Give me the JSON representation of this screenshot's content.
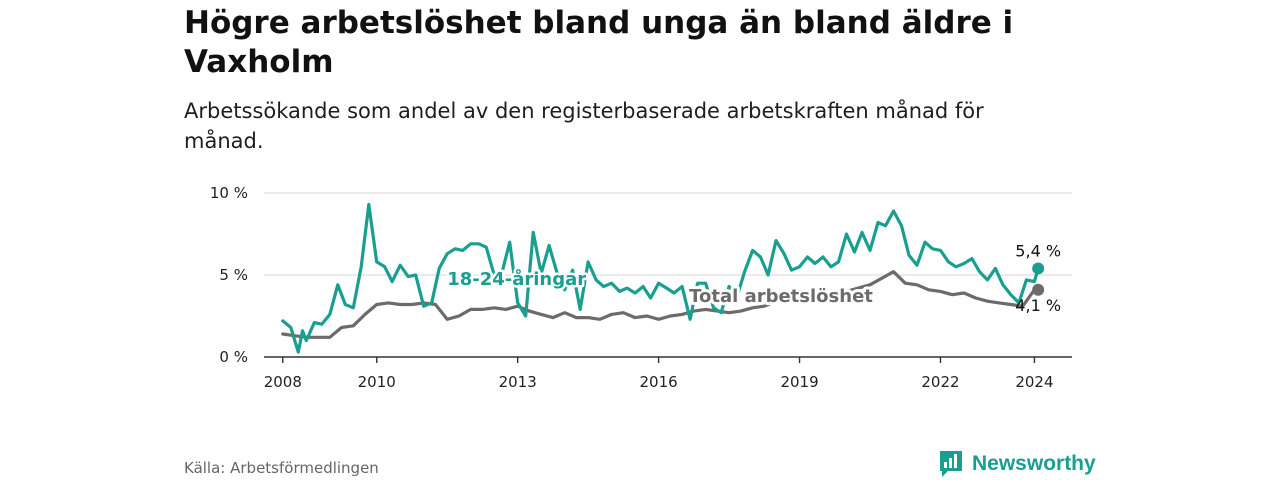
{
  "chart_data": {
    "type": "line",
    "title": "Högre arbetslöshet bland unga än bland äldre i Vaxholm",
    "subtitle": "Arbetssökande som andel av den registerbaserade arbetskraften månad för månad.",
    "xlabel": "",
    "ylabel": "",
    "x_ticks": [
      "2008",
      "2010",
      "2013",
      "2016",
      "2019",
      "2022",
      "2024"
    ],
    "x_tick_values": [
      2008,
      2010,
      2013,
      2016,
      2019,
      2022,
      2024
    ],
    "y_ticks": [
      "0 %",
      "5 %",
      "10 %"
    ],
    "y_tick_values": [
      0,
      5,
      10
    ],
    "xlim": [
      2007.6,
      2024.8
    ],
    "ylim": [
      0,
      10
    ],
    "grid": true,
    "series": [
      {
        "name": "18-24-åringar",
        "color": "#1a9e8f",
        "end_label": "5,4 %",
        "x": [
          2008.0,
          2008.17,
          2008.33,
          2008.42,
          2008.5,
          2008.67,
          2008.83,
          2009.0,
          2009.17,
          2009.33,
          2009.5,
          2009.67,
          2009.83,
          2010.0,
          2010.17,
          2010.33,
          2010.5,
          2010.67,
          2010.83,
          2011.0,
          2011.17,
          2011.33,
          2011.5,
          2011.67,
          2011.83,
          2012.0,
          2012.17,
          2012.33,
          2012.5,
          2012.67,
          2012.83,
          2013.0,
          2013.17,
          2013.33,
          2013.5,
          2013.67,
          2013.83,
          2014.0,
          2014.17,
          2014.33,
          2014.5,
          2014.67,
          2014.83,
          2015.0,
          2015.17,
          2015.33,
          2015.5,
          2015.67,
          2015.83,
          2016.0,
          2016.17,
          2016.33,
          2016.5,
          2016.67,
          2016.83,
          2017.0,
          2017.17,
          2017.33,
          2017.5,
          2017.67,
          2017.83,
          2018.0,
          2018.17,
          2018.33,
          2018.5,
          2018.67,
          2018.83,
          2019.0,
          2019.17,
          2019.33,
          2019.5,
          2019.67,
          2019.83,
          2020.0,
          2020.17,
          2020.33,
          2020.5,
          2020.67,
          2020.83,
          2021.0,
          2021.17,
          2021.33,
          2021.5,
          2021.67,
          2021.83,
          2022.0,
          2022.17,
          2022.33,
          2022.5,
          2022.67,
          2022.83,
          2023.0,
          2023.17,
          2023.33,
          2023.5,
          2023.67,
          2023.83,
          2024.0,
          2024.08
        ],
        "values": [
          2.2,
          1.8,
          0.3,
          1.6,
          1.0,
          2.1,
          2.0,
          2.6,
          4.4,
          3.2,
          3.0,
          5.5,
          9.3,
          5.8,
          5.5,
          4.6,
          5.6,
          4.9,
          5.0,
          3.1,
          3.3,
          5.4,
          6.3,
          6.6,
          6.5,
          6.9,
          6.9,
          6.7,
          5.0,
          5.2,
          7.0,
          3.3,
          2.5,
          7.6,
          5.1,
          6.8,
          5.2,
          4.1,
          5.3,
          2.9,
          5.8,
          4.7,
          4.3,
          4.5,
          4.0,
          4.2,
          3.9,
          4.3,
          3.6,
          4.5,
          4.2,
          3.9,
          4.3,
          2.3,
          4.5,
          4.5,
          3.0,
          2.7,
          4.3,
          3.7,
          5.2,
          6.5,
          6.1,
          5.0,
          7.1,
          6.3,
          5.3,
          5.5,
          6.1,
          5.7,
          6.1,
          5.5,
          5.8,
          7.5,
          6.4,
          7.6,
          6.5,
          8.2,
          8.0,
          8.9,
          8.0,
          6.2,
          5.6,
          7.0,
          6.6,
          6.5,
          5.8,
          5.5,
          5.7,
          6.0,
          5.2,
          4.7,
          5.4,
          4.4,
          3.8,
          3.3,
          4.7,
          4.6,
          5.4
        ]
      },
      {
        "name": "Total arbetslöshet",
        "color": "#6b6b6b",
        "end_label": "4,1 %",
        "x": [
          2008.0,
          2008.25,
          2008.5,
          2008.75,
          2009.0,
          2009.25,
          2009.5,
          2009.75,
          2010.0,
          2010.25,
          2010.5,
          2010.75,
          2011.0,
          2011.25,
          2011.5,
          2011.75,
          2012.0,
          2012.25,
          2012.5,
          2012.75,
          2013.0,
          2013.25,
          2013.5,
          2013.75,
          2014.0,
          2014.25,
          2014.5,
          2014.75,
          2015.0,
          2015.25,
          2015.5,
          2015.75,
          2016.0,
          2016.25,
          2016.5,
          2016.75,
          2017.0,
          2017.25,
          2017.5,
          2017.75,
          2018.0,
          2018.25,
          2018.5,
          2018.75,
          2019.0,
          2019.25,
          2019.5,
          2019.75,
          2020.0,
          2020.25,
          2020.5,
          2020.75,
          2021.0,
          2021.25,
          2021.5,
          2021.75,
          2022.0,
          2022.25,
          2022.5,
          2022.75,
          2023.0,
          2023.25,
          2023.5,
          2023.75,
          2024.0,
          2024.08
        ],
        "values": [
          1.4,
          1.3,
          1.2,
          1.2,
          1.2,
          1.8,
          1.9,
          2.6,
          3.2,
          3.3,
          3.2,
          3.2,
          3.3,
          3.2,
          2.3,
          2.5,
          2.9,
          2.9,
          3.0,
          2.9,
          3.1,
          2.8,
          2.6,
          2.4,
          2.7,
          2.4,
          2.4,
          2.3,
          2.6,
          2.7,
          2.4,
          2.5,
          2.3,
          2.5,
          2.6,
          2.8,
          2.9,
          2.8,
          2.7,
          2.8,
          3.0,
          3.1,
          3.4,
          3.6,
          3.5,
          3.8,
          3.9,
          3.7,
          4.0,
          4.2,
          4.4,
          4.8,
          5.2,
          4.5,
          4.4,
          4.1,
          4.0,
          3.8,
          3.9,
          3.6,
          3.4,
          3.3,
          3.2,
          3.1,
          4.1,
          4.1
        ]
      }
    ]
  },
  "footer": {
    "source": "Källa: Arbetsförmedlingen",
    "brand": "Newsworthy"
  },
  "colors": {
    "accent": "#1a9e8f",
    "total": "#6b6b6b"
  }
}
